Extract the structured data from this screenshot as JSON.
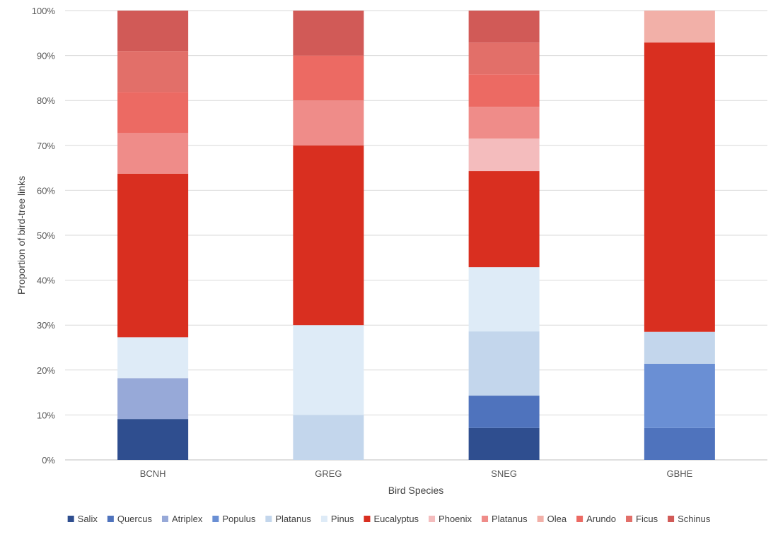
{
  "chart_data": {
    "type": "bar",
    "stacked": true,
    "title": "",
    "xlabel": "Bird Species",
    "ylabel": "Proportion of bird-tree links",
    "ylim": [
      0,
      100
    ],
    "yticks": [
      "0%",
      "10%",
      "20%",
      "30%",
      "40%",
      "50%",
      "60%",
      "70%",
      "80%",
      "90%",
      "100%"
    ],
    "categories": [
      "BCNH",
      "GREG",
      "SNEG",
      "GBHE"
    ],
    "legend_position": "bottom",
    "grid": true,
    "series": [
      {
        "name": "Salix",
        "color": "#2f4e8f",
        "values": [
          9.1,
          0,
          7.1,
          0
        ]
      },
      {
        "name": "Quercus",
        "color": "#4f73bd",
        "values": [
          0,
          0,
          7.2,
          7.1
        ]
      },
      {
        "name": "Atriplex",
        "color": "#97a9d8",
        "values": [
          9.1,
          0,
          0,
          0
        ]
      },
      {
        "name": "Populus",
        "color": "#6a8fd4",
        "values": [
          0,
          0,
          0,
          14.3
        ]
      },
      {
        "name": "Platanus",
        "color": "#c3d6ec",
        "values": [
          0,
          10,
          14.3,
          7.1
        ]
      },
      {
        "name": "Pinus",
        "color": "#deebf7",
        "values": [
          9.1,
          20,
          14.3,
          0
        ]
      },
      {
        "name": "Eucalyptus",
        "color": "#d92f20",
        "values": [
          36.4,
          40,
          21.4,
          64.4
        ]
      },
      {
        "name": "Phoenix",
        "color": "#f4bcbd",
        "values": [
          0,
          0,
          7.2,
          0
        ]
      },
      {
        "name": "Platanus",
        "color": "#ef8c89",
        "values": [
          9.1,
          10,
          7.1,
          0
        ]
      },
      {
        "name": "Olea",
        "color": "#f2b0a8",
        "values": [
          0,
          0,
          0,
          7.1
        ]
      },
      {
        "name": "Arundo",
        "color": "#ec6a63",
        "values": [
          9.1,
          10,
          7.2,
          0
        ]
      },
      {
        "name": "Ficus",
        "color": "#e26f69",
        "values": [
          9.1,
          0,
          7.1,
          0
        ]
      },
      {
        "name": "Schinus",
        "color": "#d15a57",
        "values": [
          9.0,
          10,
          7.1,
          0
        ]
      }
    ]
  }
}
